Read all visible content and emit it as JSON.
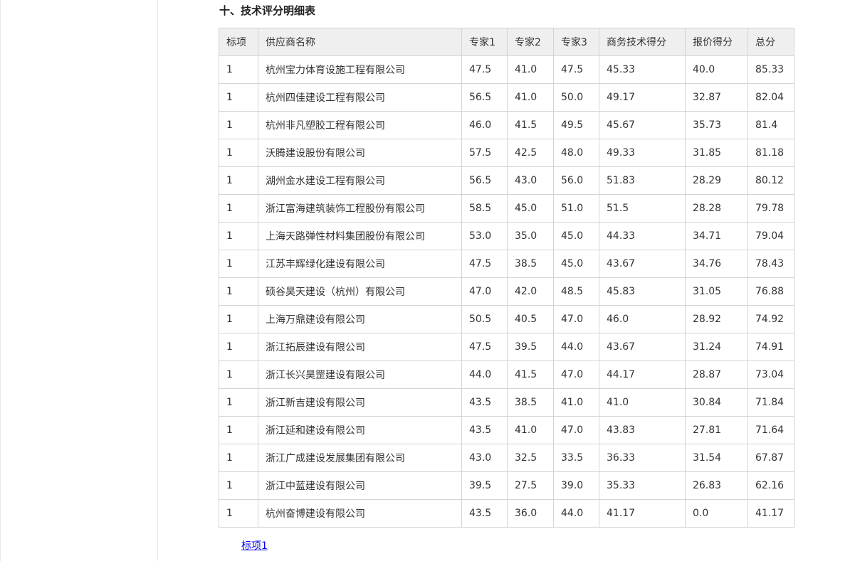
{
  "title": "十、技术评分明细表",
  "table": {
    "headers": [
      "标项",
      "供应商名称",
      "专家1",
      "专家2",
      "专家3",
      "商务技术得分",
      "报价得分",
      "总分"
    ],
    "rows": [
      [
        "1",
        "杭州宝力体育设施工程有限公司",
        "47.5",
        "41.0",
        "47.5",
        "45.33",
        "40.0",
        "85.33"
      ],
      [
        "1",
        "杭州四佳建设工程有限公司",
        "56.5",
        "41.0",
        "50.0",
        "49.17",
        "32.87",
        "82.04"
      ],
      [
        "1",
        "杭州非凡塑胶工程有限公司",
        "46.0",
        "41.5",
        "49.5",
        "45.67",
        "35.73",
        "81.4"
      ],
      [
        "1",
        "沃腾建设股份有限公司",
        "57.5",
        "42.5",
        "48.0",
        "49.33",
        "31.85",
        "81.18"
      ],
      [
        "1",
        "湖州金水建设工程有限公司",
        "56.5",
        "43.0",
        "56.0",
        "51.83",
        "28.29",
        "80.12"
      ],
      [
        "1",
        "浙江富海建筑装饰工程股份有限公司",
        "58.5",
        "45.0",
        "51.0",
        "51.5",
        "28.28",
        "79.78"
      ],
      [
        "1",
        "上海天路弹性材料集团股份有限公司",
        "53.0",
        "35.0",
        "45.0",
        "44.33",
        "34.71",
        "79.04"
      ],
      [
        "1",
        "江苏丰辉绿化建设有限公司",
        "47.5",
        "38.5",
        "45.0",
        "43.67",
        "34.76",
        "78.43"
      ],
      [
        "1",
        "硕谷昊天建设（杭州）有限公司",
        "47.0",
        "42.0",
        "48.5",
        "45.83",
        "31.05",
        "76.88"
      ],
      [
        "1",
        "上海万鼎建设有限公司",
        "50.5",
        "40.5",
        "47.0",
        "46.0",
        "28.92",
        "74.92"
      ],
      [
        "1",
        "浙江拓辰建设有限公司",
        "47.5",
        "39.5",
        "44.0",
        "43.67",
        "31.24",
        "74.91"
      ],
      [
        "1",
        "浙江长兴昊罡建设有限公司",
        "44.0",
        "41.5",
        "47.0",
        "44.17",
        "28.87",
        "73.04"
      ],
      [
        "1",
        "浙江新吉建设有限公司",
        "43.5",
        "38.5",
        "41.0",
        "41.0",
        "30.84",
        "71.84"
      ],
      [
        "1",
        "浙江延和建设有限公司",
        "43.5",
        "41.0",
        "47.0",
        "43.83",
        "27.81",
        "71.64"
      ],
      [
        "1",
        "浙江广成建设发展集团有限公司",
        "43.0",
        "32.5",
        "33.5",
        "36.33",
        "31.54",
        "67.87"
      ],
      [
        "1",
        "浙江中蓝建设有限公司",
        "39.5",
        "27.5",
        "39.0",
        "35.33",
        "26.83",
        "62.16"
      ],
      [
        "1",
        "杭州奋博建设有限公司",
        "43.5",
        "36.0",
        "44.0",
        "41.17",
        "0.0",
        "41.17"
      ]
    ]
  },
  "link": {
    "label": "标项1",
    "color": "#0000ee"
  }
}
